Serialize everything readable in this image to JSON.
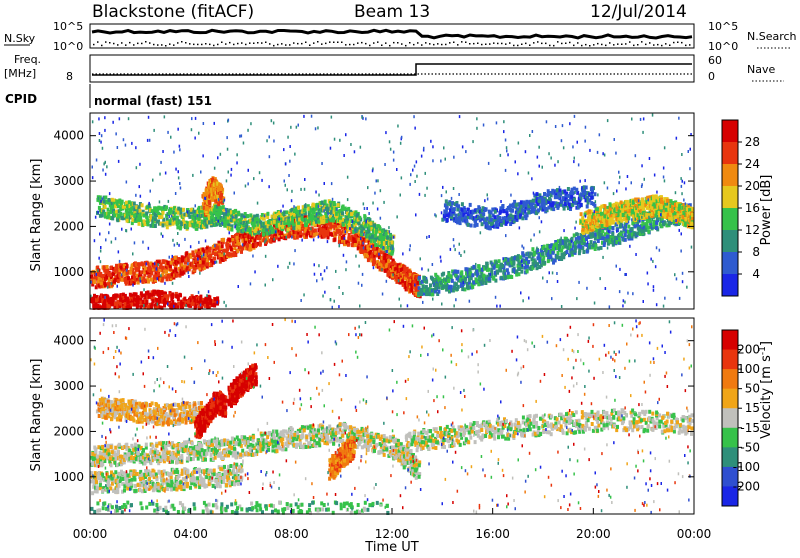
{
  "header": {
    "station": "Blackstone (fitACF)",
    "beam": "Beam 13",
    "date": "12/Jul/2014"
  },
  "top_panels": {
    "nsky_label": "N.Sky",
    "nsky_ticks": [
      "10^5",
      "10^0"
    ],
    "nsearch_label": "N.Search",
    "nsearch_ticks": [
      "10^5",
      "10^0"
    ],
    "freq_label": "Freq.",
    "freq_unit": "[MHz]",
    "freq_ticks": [
      "8"
    ],
    "nave_label": "Nave",
    "nave_ticks": [
      "60",
      "0"
    ],
    "cpid_label": "CPID",
    "cpid_text": "normal (fast) 151"
  },
  "chart_data": [
    {
      "type": "heatmap",
      "quantity": "Power",
      "ylabel": "Slant Range [km]",
      "xlabel": "",
      "xlim": [
        0,
        24
      ],
      "ylim": [
        180,
        4500
      ],
      "yticks": [
        "1000",
        "2000",
        "3000",
        "4000"
      ],
      "colorbar_label": "Power [dB]",
      "colorbar_ticks": [
        "4",
        "8",
        "12",
        "16",
        "20",
        "24",
        "28"
      ],
      "colors": [
        "#1a26e6",
        "#2f5bd0",
        "#2f8f7a",
        "#36c24a",
        "#e6c81e",
        "#f08a10",
        "#e8350e",
        "#d60000"
      ],
      "features": [
        {
          "t": [
            0.0,
            1.5,
            3.0,
            4.5,
            6.0,
            7.5,
            9.0,
            10.5,
            11.5,
            12.5,
            13.0
          ],
          "r": [
            900,
            1000,
            1080,
            1350,
            1700,
            2000,
            2050,
            1800,
            1300,
            900,
            700
          ],
          "level": 6
        },
        {
          "t": [
            0.3,
            2.0,
            4.0,
            5.0,
            6.5,
            8.0,
            9.5,
            11.0,
            12.0
          ],
          "r": [
            2500,
            2300,
            2200,
            2300,
            2050,
            2200,
            2400,
            2000,
            1600
          ],
          "level": 3
        },
        {
          "t": [
            4.5,
            4.8,
            5.2
          ],
          "r": [
            2500,
            2900,
            2700
          ],
          "level": 5
        },
        {
          "t": [
            0.0,
            1.0,
            2.5,
            4.0,
            5.0
          ],
          "r": [
            300,
            300,
            400,
            300,
            250
          ],
          "level": 7
        },
        {
          "t": [
            13.0,
            15.0,
            17.0,
            19.0,
            21.0,
            23.0,
            24.0
          ],
          "r": [
            700,
            900,
            1200,
            1600,
            1900,
            2300,
            2300
          ],
          "level": 2
        },
        {
          "t": [
            19.5,
            20.5,
            21.5,
            22.5,
            23.5,
            24.0
          ],
          "r": [
            2100,
            2300,
            2400,
            2500,
            2300,
            2200
          ],
          "level": 4
        },
        {
          "t": [
            14.0,
            16.0,
            18.0,
            20.0
          ],
          "r": [
            2400,
            2200,
            2600,
            2700
          ],
          "level": 1
        }
      ]
    },
    {
      "type": "heatmap",
      "quantity": "Velocity",
      "ylabel": "Slant Range [km]",
      "xlabel": "Time UT",
      "xlim": [
        0,
        24
      ],
      "ylim": [
        180,
        4500
      ],
      "yticks": [
        "1000",
        "2000",
        "3000",
        "4000"
      ],
      "xticks": [
        "00:00",
        "04:00",
        "08:00",
        "12:00",
        "16:00",
        "20:00",
        "00:00"
      ],
      "colorbar_label": "Velocity [m s^-1]",
      "colorbar_ticks": [
        "200",
        "100",
        "50",
        "15",
        "-15",
        "-50",
        "-100",
        "-200"
      ],
      "colors": [
        "#1a26e6",
        "#2f4fd0",
        "#2f8f7a",
        "#36c24a",
        "#c0c0bc",
        "#f0a518",
        "#f07a10",
        "#e8350e",
        "#d60000"
      ],
      "features": [
        {
          "t": [
            0.0,
            2.0,
            4.0,
            6.0,
            8.0,
            10.0,
            12.0,
            13.0
          ],
          "r": [
            1500,
            1550,
            1600,
            1700,
            1900,
            2000,
            1700,
            1200
          ],
          "level": 4
        },
        {
          "t": [
            0.0,
            2.0,
            4.0,
            6.0
          ],
          "r": [
            900,
            950,
            1000,
            1100
          ],
          "level": 4
        },
        {
          "t": [
            0.3,
            1.5,
            3.0,
            4.5
          ],
          "r": [
            2550,
            2500,
            2400,
            2500
          ],
          "level": 5
        },
        {
          "t": [
            4.2,
            4.6,
            5.0,
            5.3
          ],
          "r": [
            2100,
            2400,
            2700,
            2600
          ],
          "level": 8
        },
        {
          "t": [
            9.5,
            10.0,
            10.4
          ],
          "r": [
            1200,
            1500,
            1700
          ],
          "level": 6
        },
        {
          "t": [
            5.5,
            6.0,
            6.5
          ],
          "r": [
            2800,
            3100,
            3300
          ],
          "level": 8
        },
        {
          "t": [
            12.5,
            15.0,
            18.0,
            21.0,
            24.0
          ],
          "r": [
            1800,
            2000,
            2200,
            2300,
            2200
          ],
          "level": 4
        },
        {
          "t": [
            0.0,
            6.0,
            12.0
          ],
          "r": [
            250,
            260,
            250
          ],
          "level": 3
        }
      ]
    }
  ]
}
